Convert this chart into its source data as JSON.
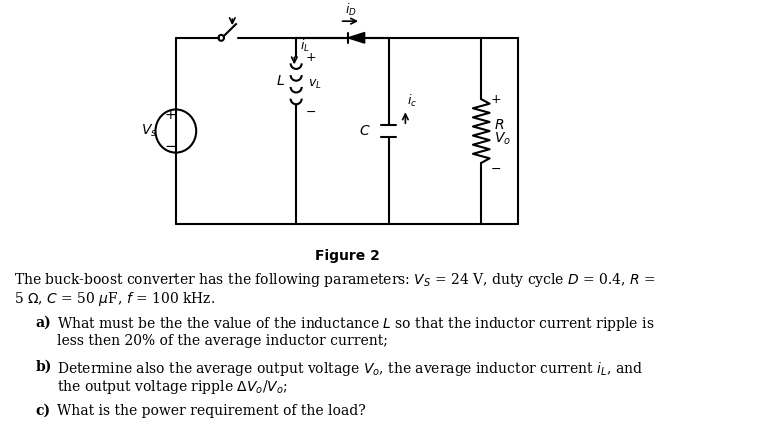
{
  "figure_label": "Figure 2",
  "bg_color": "#ffffff",
  "text_color": "#000000",
  "param_line1": "The buck-boost converter has the following parameters: $V_S$ = 24 V, duty cycle $D$ = 0.4, $R$ =",
  "param_line2": "5 Ω, $C$ = 50 μF, $f$ = 100 kHz.",
  "qa1": "What must be the the value of the inductance $L$ so that the inductor current ripple is",
  "qa2": "less then 20% of the average inductor current;",
  "qb1": "Determine also the average output voltage $V_o$, the average inductor current $i_L$, and",
  "qb2": "the output voltage ripple Δ$V_o$/$V_o$;",
  "qc": "What is the power requirement of the load?"
}
